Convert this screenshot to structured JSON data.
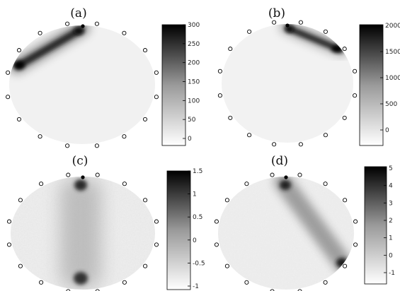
{
  "panels": [
    {
      "id": "a",
      "label": "(a)",
      "colorbar": {
        "ticks": [
          "300",
          "250",
          "200",
          "150",
          "100",
          "50",
          "0"
        ]
      }
    },
    {
      "id": "b",
      "label": "(b)",
      "colorbar": {
        "ticks": [
          "2000",
          "1500",
          "1000",
          "500",
          "0"
        ]
      }
    },
    {
      "id": "c",
      "label": "(c)",
      "colorbar": {
        "ticks": [
          "1.5",
          "1",
          "0.5",
          "0",
          "-0.5",
          "-1"
        ]
      }
    },
    {
      "id": "d",
      "label": "(d)",
      "colorbar": {
        "ticks": [
          "5",
          "4",
          "3",
          "2",
          "1",
          "0",
          "-1"
        ]
      }
    }
  ],
  "electrode_count": 16
}
